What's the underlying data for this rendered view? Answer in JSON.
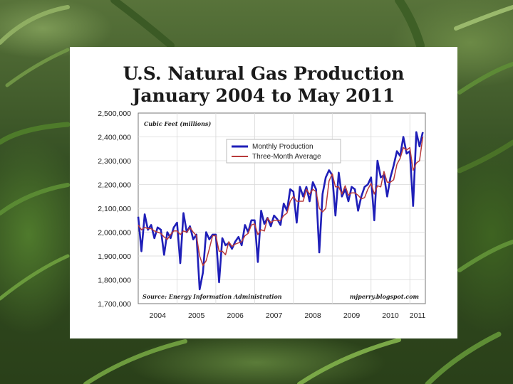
{
  "chart_data": {
    "type": "line",
    "title": "U.S. Natural Gas Production",
    "subtitle": "January 2004 to May 2011",
    "ylabel": "Cubic Feet (millions)",
    "xlabel": "",
    "ylim": [
      1700000,
      2500000
    ],
    "xlim": [
      2004.0,
      2011.4
    ],
    "y_ticks": [
      1700000,
      1800000,
      1900000,
      2000000,
      2100000,
      2200000,
      2300000,
      2400000,
      2500000
    ],
    "y_tick_labels": [
      "1,700,000",
      "1,800,000",
      "1,900,000",
      "2,000,000",
      "2,100,000",
      "2,200,000",
      "2,300,000",
      "2,400,000",
      "2,500,000"
    ],
    "x_tick_labels": [
      "2004",
      "2005",
      "2006",
      "2007",
      "2008",
      "2009",
      "2010",
      "2011"
    ],
    "grid": true,
    "legend": "top-center",
    "source_note": "Source: Energy Information Administration",
    "credit": "mjperry.blogspot.com",
    "series": [
      {
        "name": "Monthly Production",
        "color": "#1f1fb8",
        "start": "2004-01",
        "values": [
          2065000,
          1920000,
          2075000,
          2010000,
          2030000,
          1975000,
          2020000,
          2010000,
          1905000,
          2000000,
          1975000,
          2020000,
          2040000,
          1870000,
          2080000,
          2000000,
          2025000,
          1970000,
          1990000,
          1760000,
          1830000,
          2000000,
          1970000,
          1990000,
          1990000,
          1790000,
          1975000,
          1945000,
          1955000,
          1930000,
          1960000,
          1980000,
          1945000,
          2030000,
          2000000,
          2050000,
          2050000,
          1875000,
          2090000,
          2035000,
          2060000,
          2025000,
          2070000,
          2055000,
          2030000,
          2120000,
          2090000,
          2180000,
          2170000,
          2040000,
          2190000,
          2150000,
          2190000,
          2130000,
          2210000,
          2180000,
          1915000,
          2160000,
          2230000,
          2260000,
          2240000,
          2070000,
          2250000,
          2150000,
          2180000,
          2130000,
          2190000,
          2180000,
          2090000,
          2150000,
          2190000,
          2200000,
          2230000,
          2050000,
          2300000,
          2230000,
          2240000,
          2150000,
          2230000,
          2280000,
          2340000,
          2320000,
          2400000,
          2330000,
          2340000,
          2110000,
          2420000,
          2360000,
          2420000
        ]
      },
      {
        "name": "Three-Month Average",
        "color": "#b83a3a",
        "start": "2004-01",
        "values": [
          2030000,
          2010000,
          2020000,
          2015000,
          2015000,
          2005000,
          2000000,
          1995000,
          1980000,
          1970000,
          1990000,
          2005000,
          2005000,
          1990000,
          2005000,
          2000000,
          2020000,
          2000000,
          1985000,
          1900000,
          1860000,
          1880000,
          1930000,
          1985000,
          1985000,
          1920000,
          1920000,
          1905000,
          1960000,
          1940000,
          1950000,
          1955000,
          1960000,
          1985000,
          1995000,
          2030000,
          2035000,
          1990000,
          2010000,
          2005000,
          2060000,
          2040000,
          2050000,
          2050000,
          2050000,
          2070000,
          2080000,
          2130000,
          2150000,
          2130000,
          2130000,
          2130000,
          2180000,
          2160000,
          2180000,
          2170000,
          2100000,
          2085000,
          2100000,
          2215000,
          2245000,
          2190000,
          2190000,
          2160000,
          2195000,
          2155000,
          2165000,
          2165000,
          2155000,
          2140000,
          2145000,
          2180000,
          2205000,
          2160000,
          2195000,
          2190000,
          2255000,
          2210000,
          2210000,
          2220000,
          2285000,
          2310000,
          2355000,
          2345000,
          2355000,
          2260000,
          2290000,
          2300000,
          2400000
        ]
      }
    ]
  }
}
